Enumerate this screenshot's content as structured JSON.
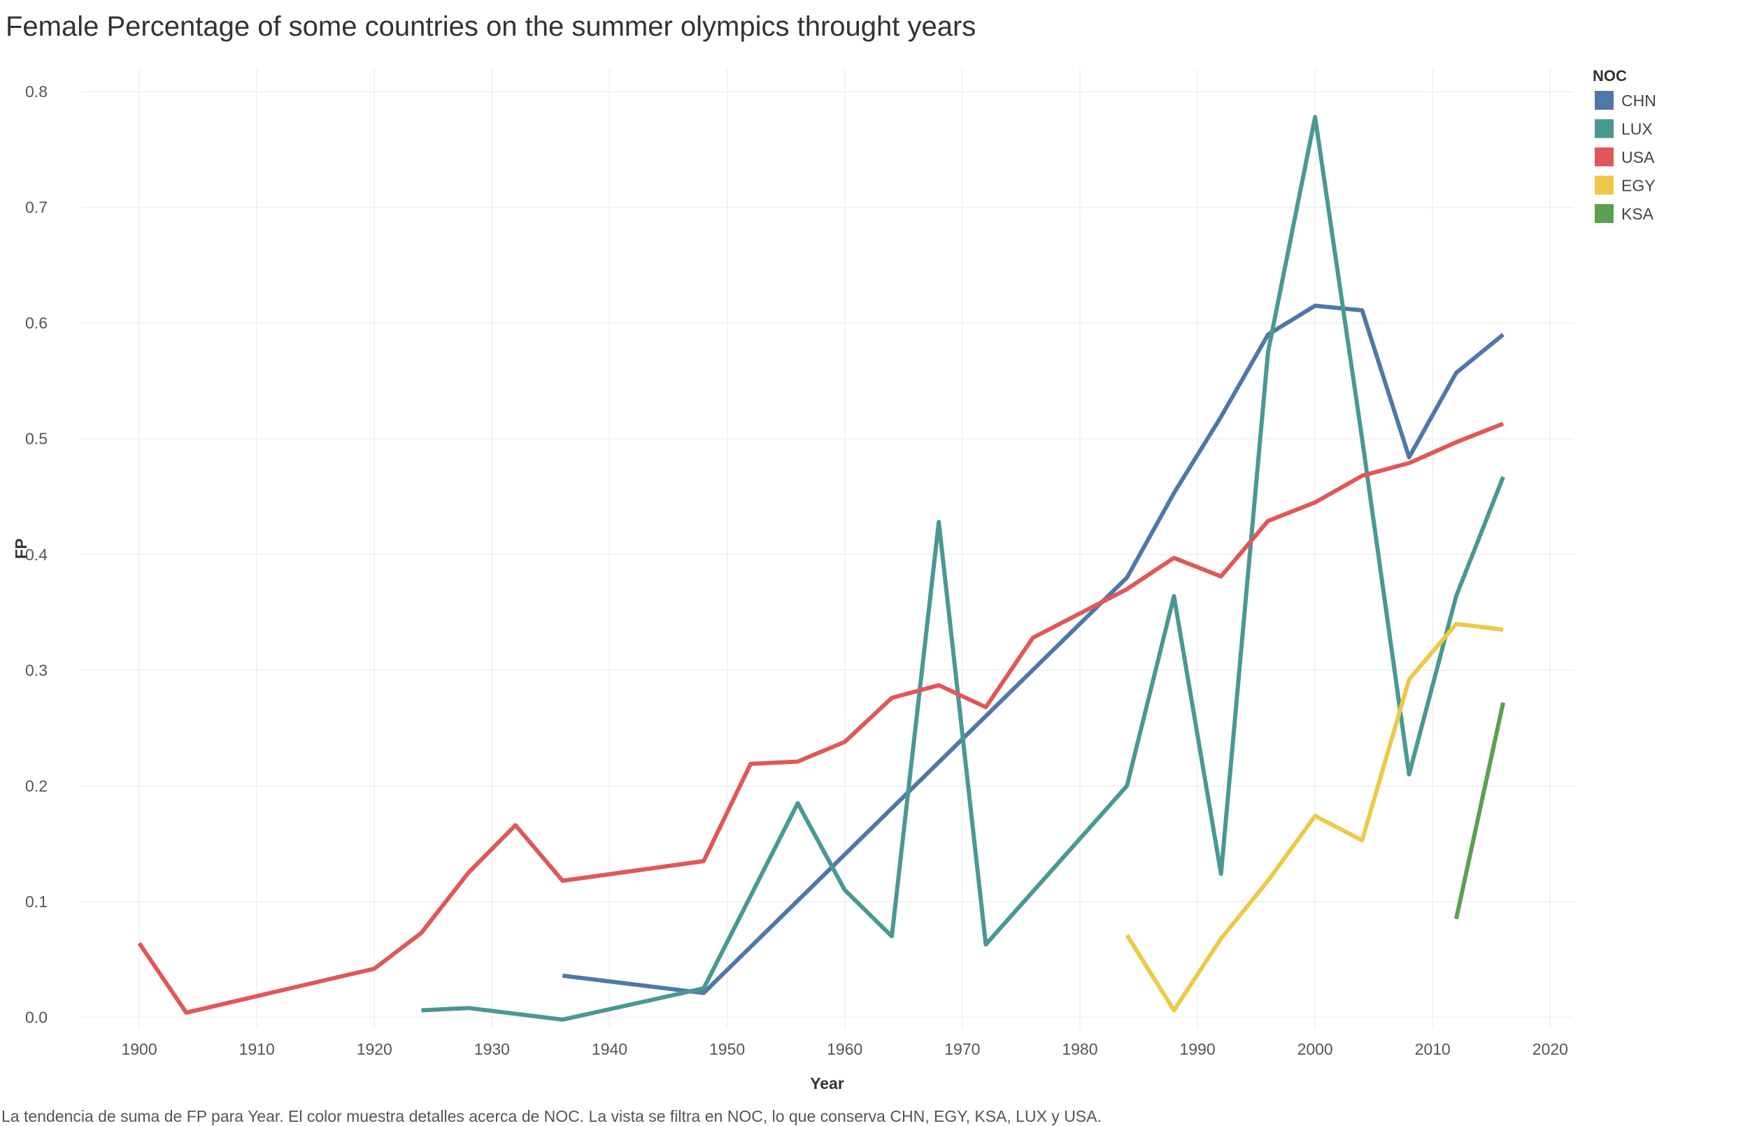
{
  "title": "Female Percentage of some countries on the summer olympics throught years",
  "caption": "La tendencia de suma de FP para Year.  El color muestra detalles acerca de NOC. La vista se filtra en NOC, lo que conserva CHN, EGY, KSA, LUX y USA.",
  "chart_data": {
    "type": "line",
    "title": "Female Percentage of some countries on the summer olympics throught years",
    "xlabel": "Year",
    "ylabel": "FP",
    "xlim": [
      1895,
      2022
    ],
    "ylim": [
      -0.01,
      0.82
    ],
    "xticks": [
      1900,
      1910,
      1920,
      1930,
      1940,
      1950,
      1960,
      1970,
      1980,
      1990,
      2000,
      2010,
      2020
    ],
    "yticks": [
      0.0,
      0.1,
      0.2,
      0.3,
      0.4,
      0.5,
      0.6,
      0.7,
      0.8
    ],
    "ytick_labels": [
      "0.0",
      "0.1",
      "0.2",
      "0.3",
      "0.4",
      "0.5",
      "0.6",
      "0.7",
      "0.8"
    ],
    "grid": true,
    "legend_title": "NOC",
    "legend_position": "top-right",
    "series": [
      {
        "name": "CHN",
        "color": "#4e79a7",
        "x": [
          1936,
          1948,
          1984,
          1988,
          1992,
          1996,
          2000,
          2004,
          2008,
          2012,
          2016
        ],
        "y": [
          0.036,
          0.021,
          0.38,
          0.453,
          0.519,
          0.59,
          0.615,
          0.611,
          0.484,
          0.557,
          0.59
        ]
      },
      {
        "name": "LUX",
        "color": "#499894",
        "x": [
          1924,
          1928,
          1936,
          1948,
          1956,
          1960,
          1964,
          1968,
          1972,
          1984,
          1988,
          1992,
          1996,
          2000,
          2004,
          2008,
          2012,
          2016
        ],
        "y": [
          0.006,
          0.008,
          -0.002,
          0.025,
          0.185,
          0.11,
          0.07,
          0.428,
          0.063,
          0.2,
          0.364,
          0.124,
          0.575,
          0.778,
          0.5,
          0.21,
          0.364,
          0.467
        ]
      },
      {
        "name": "USA",
        "color": "#e15759",
        "x": [
          1900,
          1904,
          1920,
          1924,
          1928,
          1932,
          1936,
          1948,
          1952,
          1956,
          1960,
          1964,
          1968,
          1972,
          1976,
          1984,
          1988,
          1992,
          1996,
          2000,
          2004,
          2008,
          2012,
          2016
        ],
        "y": [
          0.064,
          0.004,
          0.042,
          0.073,
          0.125,
          0.166,
          0.118,
          0.135,
          0.219,
          0.221,
          0.238,
          0.276,
          0.287,
          0.268,
          0.328,
          0.37,
          0.397,
          0.381,
          0.429,
          0.445,
          0.468,
          0.479,
          0.497,
          0.513
        ]
      },
      {
        "name": "EGY",
        "color": "#edc948",
        "x": [
          1984,
          1988,
          1992,
          1996,
          2000,
          2004,
          2008,
          2012,
          2016
        ],
        "y": [
          0.071,
          0.006,
          0.068,
          0.118,
          0.174,
          0.153,
          0.292,
          0.34,
          0.335
        ]
      },
      {
        "name": "KSA",
        "color": "#59a14f",
        "x": [
          2012,
          2016
        ],
        "y": [
          0.085,
          0.272
        ]
      }
    ]
  }
}
